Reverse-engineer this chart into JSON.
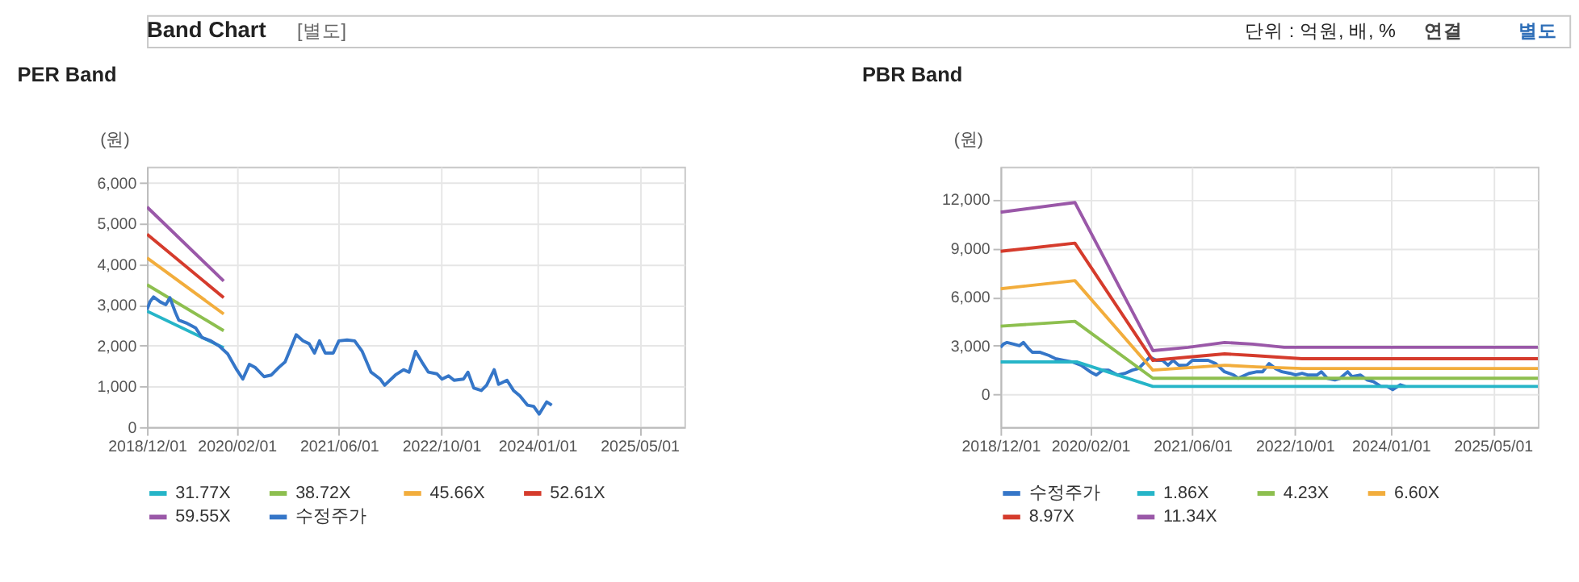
{
  "chart_data": [
    {
      "type": "line",
      "title": "PER Band",
      "ylabel": "(원)",
      "annotations": [
        "Band Chart",
        "[별도]",
        "단위 : 억원, 배, %",
        "연결",
        "별도"
      ],
      "xlim": [
        "2018-12-01",
        "2025-12-01"
      ],
      "xticks": [
        {
          "value": "2018-12-01",
          "label": "2018/12/01"
        },
        {
          "value": "2020-02-01",
          "label": "2020/02/01"
        },
        {
          "value": "2021-06-01",
          "label": "2021/06/01"
        },
        {
          "value": "2022-10-01",
          "label": "2022/10/01"
        },
        {
          "value": "2024-01-01",
          "label": "2024/01/01"
        },
        {
          "value": "2025-05-01",
          "label": "2025/05/01"
        }
      ],
      "ylim": [
        0,
        6400
      ],
      "yticks": [
        0,
        {
          "value": 1000,
          "label": "1,000"
        },
        {
          "value": 2000,
          "label": "2,000"
        },
        {
          "value": 3000,
          "label": "3,000"
        },
        {
          "value": 4000,
          "label": "4,000"
        },
        {
          "value": 5000,
          "label": "5,000"
        },
        {
          "value": 6000,
          "label": "6,000"
        }
      ],
      "grid": true,
      "legend": "bottom",
      "marker": "none",
      "line_style": "solid",
      "series": [
        {
          "name": "31.77X",
          "color": "#26b5c8",
          "x": [
            "2018-12-01",
            "2019-12-01"
          ],
          "values": [
            2850,
            1950
          ]
        },
        {
          "name": "38.72X",
          "color": "#8dbf4f",
          "x": [
            "2018-12-01",
            "2019-12-01"
          ],
          "values": [
            3500,
            2370
          ]
        },
        {
          "name": "45.66X",
          "color": "#f2ad3c",
          "x": [
            "2018-12-01",
            "2019-12-01"
          ],
          "values": [
            4160,
            2780
          ]
        },
        {
          "name": "52.61X",
          "color": "#d53b2c",
          "x": [
            "2018-12-01",
            "2019-12-01"
          ],
          "values": [
            4740,
            3180
          ]
        },
        {
          "name": "59.55X",
          "color": "#9a58a8",
          "x": [
            "2018-12-01",
            "2019-12-01"
          ],
          "values": [
            5410,
            3590
          ]
        },
        {
          "name": "수정주가",
          "color": "#3576c8",
          "x": [
            "2018-12-01",
            "2018-12-15",
            "2019-01-01",
            "2019-02-01",
            "2019-03-01",
            "2019-03-20",
            "2019-04-15",
            "2019-05-01",
            "2019-06-05",
            "2019-07-20",
            "2019-08-20",
            "2019-10-01",
            "2019-11-10",
            "2019-12-20",
            "2020-02-01",
            "2020-03-01",
            "2020-04-01",
            "2020-04-28",
            "2020-06-10",
            "2020-07-15",
            "2020-08-20",
            "2020-09-18",
            "2020-11-10",
            "2020-12-12",
            "2021-01-10",
            "2021-02-05",
            "2021-03-01",
            "2021-03-28",
            "2021-05-05",
            "2021-06-01",
            "2021-07-10",
            "2021-08-15",
            "2021-09-20",
            "2021-11-01",
            "2021-12-15",
            "2022-01-05",
            "2022-02-25",
            "2022-04-05",
            "2022-05-01",
            "2022-06-01",
            "2022-07-01",
            "2022-08-01",
            "2022-09-10",
            "2022-10-05",
            "2022-11-05",
            "2022-12-01",
            "2023-01-15",
            "2023-02-05",
            "2023-03-05",
            "2023-04-10",
            "2023-05-05",
            "2023-06-10",
            "2023-07-01",
            "2023-08-10",
            "2023-09-10",
            "2023-10-10",
            "2023-11-15",
            "2023-12-15",
            "2024-01-10",
            "2024-02-15",
            "2024-03-10"
          ],
          "values": [
            2880,
            3080,
            3200,
            3080,
            3010,
            3180,
            2820,
            2630,
            2560,
            2440,
            2200,
            2120,
            1990,
            1800,
            1410,
            1180,
            1540,
            1470,
            1240,
            1280,
            1470,
            1600,
            2270,
            2120,
            2050,
            1820,
            2120,
            1820,
            1820,
            2120,
            2140,
            2120,
            1860,
            1350,
            1180,
            1030,
            1280,
            1410,
            1350,
            1860,
            1600,
            1350,
            1310,
            1180,
            1260,
            1150,
            1180,
            1350,
            960,
            900,
            1030,
            1410,
            1050,
            1150,
            900,
            770,
            540,
            510,
            320,
            620,
            540
          ]
        }
      ]
    },
    {
      "type": "line",
      "title": "PBR Band",
      "ylabel": "(원)",
      "xlim": [
        "2018-12-01",
        "2025-12-01"
      ],
      "xticks": [
        {
          "value": "2018-12-01",
          "label": "2018/12/01"
        },
        {
          "value": "2020-02-01",
          "label": "2020/02/01"
        },
        {
          "value": "2021-06-01",
          "label": "2021/06/01"
        },
        {
          "value": "2022-10-01",
          "label": "2022/10/01"
        },
        {
          "value": "2024-01-01",
          "label": "2024/01/01"
        },
        {
          "value": "2025-05-01",
          "label": "2025/05/01"
        }
      ],
      "ylim": [
        -2000,
        14000
      ],
      "yticks": [
        0,
        {
          "value": 3000,
          "label": "3,000"
        },
        {
          "value": 6000,
          "label": "6,000"
        },
        {
          "value": 9000,
          "label": "9,000"
        },
        {
          "value": 12000,
          "label": "12,000"
        }
      ],
      "grid": true,
      "legend": "bottom",
      "marker": "none",
      "line_style": "solid",
      "series": [
        {
          "name": "수정주가",
          "color": "#3576c8",
          "x": [
            "2018-12-01",
            "2018-12-15",
            "2019-01-01",
            "2019-02-01",
            "2019-03-01",
            "2019-03-20",
            "2019-04-15",
            "2019-05-01",
            "2019-06-05",
            "2019-07-20",
            "2019-08-20",
            "2019-10-01",
            "2019-11-10",
            "2019-12-20",
            "2020-02-01",
            "2020-03-01",
            "2020-04-01",
            "2020-04-28",
            "2020-06-10",
            "2020-07-15",
            "2020-08-20",
            "2020-09-18",
            "2020-11-10",
            "2020-12-12",
            "2021-01-10",
            "2021-02-05",
            "2021-03-01",
            "2021-03-28",
            "2021-05-05",
            "2021-06-01",
            "2021-07-10",
            "2021-08-15",
            "2021-09-20",
            "2021-11-01",
            "2021-12-15",
            "2022-01-05",
            "2022-02-25",
            "2022-04-05",
            "2022-05-01",
            "2022-06-01",
            "2022-07-01",
            "2022-08-01",
            "2022-09-10",
            "2022-10-05",
            "2022-11-05",
            "2022-12-01",
            "2023-01-15",
            "2023-02-05",
            "2023-03-05",
            "2023-04-10",
            "2023-05-05",
            "2023-06-10",
            "2023-07-01",
            "2023-08-10",
            "2023-09-10",
            "2023-10-10",
            "2023-11-15",
            "2023-12-15",
            "2024-01-10",
            "2024-02-15",
            "2024-03-10"
          ],
          "values": [
            2900,
            3100,
            3200,
            3100,
            3000,
            3200,
            2800,
            2600,
            2600,
            2400,
            2200,
            2100,
            2000,
            1800,
            1400,
            1200,
            1500,
            1500,
            1200,
            1300,
            1500,
            1600,
            2300,
            2100,
            2100,
            1800,
            2100,
            1800,
            1800,
            2100,
            2100,
            2100,
            1900,
            1400,
            1200,
            1000,
            1300,
            1400,
            1400,
            1900,
            1600,
            1400,
            1300,
            1200,
            1300,
            1200,
            1200,
            1400,
            1000,
            900,
            1000,
            1400,
            1100,
            1200,
            900,
            800,
            500,
            500,
            300,
            600,
            500
          ]
        },
        {
          "name": "1.86X",
          "color": "#26b5c8",
          "x": [
            "2018-12-01",
            "2019-12-01",
            "2020-11-25",
            "2025-12-01"
          ],
          "values": [
            2000,
            2000,
            500,
            500
          ]
        },
        {
          "name": "4.23X",
          "color": "#8dbf4f",
          "x": [
            "2018-12-01",
            "2019-11-20",
            "2020-11-25",
            "2025-12-01"
          ],
          "values": [
            4200,
            4500,
            1000,
            1000
          ]
        },
        {
          "name": "6.60X",
          "color": "#f2ad3c",
          "x": [
            "2018-12-01",
            "2019-11-20",
            "2020-11-25",
            "2021-11-01",
            "2022-04-01",
            "2022-11-05",
            "2025-12-01"
          ],
          "values": [
            6500,
            7000,
            1500,
            1800,
            1700,
            1600,
            1600
          ]
        },
        {
          "name": "8.97X",
          "color": "#d53b2c",
          "x": [
            "2018-12-01",
            "2019-11-20",
            "2020-11-25",
            "2021-05-12",
            "2021-11-01",
            "2022-03-15",
            "2022-11-05",
            "2025-12-01"
          ],
          "values": [
            8800,
            9300,
            2100,
            2300,
            2500,
            2400,
            2200,
            2200
          ]
        },
        {
          "name": "11.34X",
          "color": "#9a58a8",
          "x": [
            "2018-12-01",
            "2019-11-20",
            "2020-11-25",
            "2021-05-12",
            "2021-11-01",
            "2022-03-15",
            "2022-08-12",
            "2025-12-01"
          ],
          "values": [
            11200,
            11800,
            2700,
            2900,
            3200,
            3100,
            2900,
            2900
          ]
        }
      ]
    }
  ]
}
